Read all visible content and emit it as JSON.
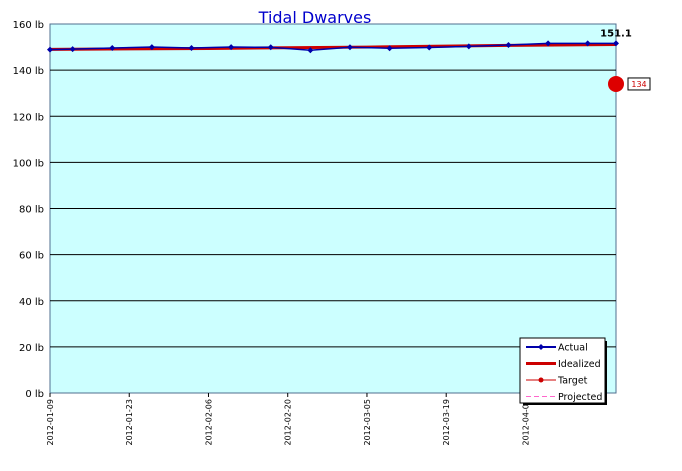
{
  "chart_data": {
    "type": "line",
    "title": "Tidal Dwarves",
    "xlabel": "",
    "ylabel": "",
    "unit": "lb",
    "ylim": [
      0,
      160
    ],
    "yticks": [
      0,
      20,
      40,
      60,
      80,
      100,
      120,
      140,
      160
    ],
    "ytick_labels": [
      "0 lb",
      "20 lb",
      "40 lb",
      "60 lb",
      "80 lb",
      "100 lb",
      "120 lb",
      "140 lb",
      "160 lb"
    ],
    "xlim": [
      "2012-01-09",
      "2012-04-18"
    ],
    "xtick_labels": [
      "2012-01-09",
      "2012-01-23",
      "2012-02-06",
      "2012-02-20",
      "2012-03-05",
      "2012-03-19",
      "2012-04-02"
    ],
    "grid": true,
    "legend_position": "bottom-right",
    "background_color": "#ccffff",
    "series": [
      {
        "name": "Actual",
        "color": "#0000aa",
        "x": [
          "2012-01-09",
          "2012-01-13",
          "2012-01-20",
          "2012-01-27",
          "2012-02-03",
          "2012-02-10",
          "2012-02-17",
          "2012-02-24",
          "2012-03-02",
          "2012-03-09",
          "2012-03-16",
          "2012-03-23",
          "2012-03-30",
          "2012-04-06",
          "2012-04-13",
          "2012-04-18"
        ],
        "y": [
          148.9,
          149.1,
          149.6,
          150.0,
          149.6,
          150.0,
          149.9,
          148.6,
          149.9,
          149.5,
          149.8,
          150.3,
          150.9,
          151.6,
          151.6,
          151.6
        ]
      },
      {
        "name": "Idealized",
        "color": "#cc0000",
        "x": [
          "2012-01-09",
          "2012-02-06",
          "2012-03-05",
          "2012-04-02",
          "2012-04-18"
        ],
        "y": [
          149.0,
          149.4,
          150.0,
          150.8,
          151.1
        ]
      },
      {
        "name": "Target",
        "color": "#cc0000",
        "x": [],
        "y": []
      },
      {
        "name": "Projected",
        "color": "#ff66cc",
        "x": [],
        "y": []
      }
    ],
    "annotations": {
      "last_value": "151.1",
      "target_marker": {
        "x": "2012-04-18",
        "y": 134,
        "label": "134"
      }
    }
  }
}
